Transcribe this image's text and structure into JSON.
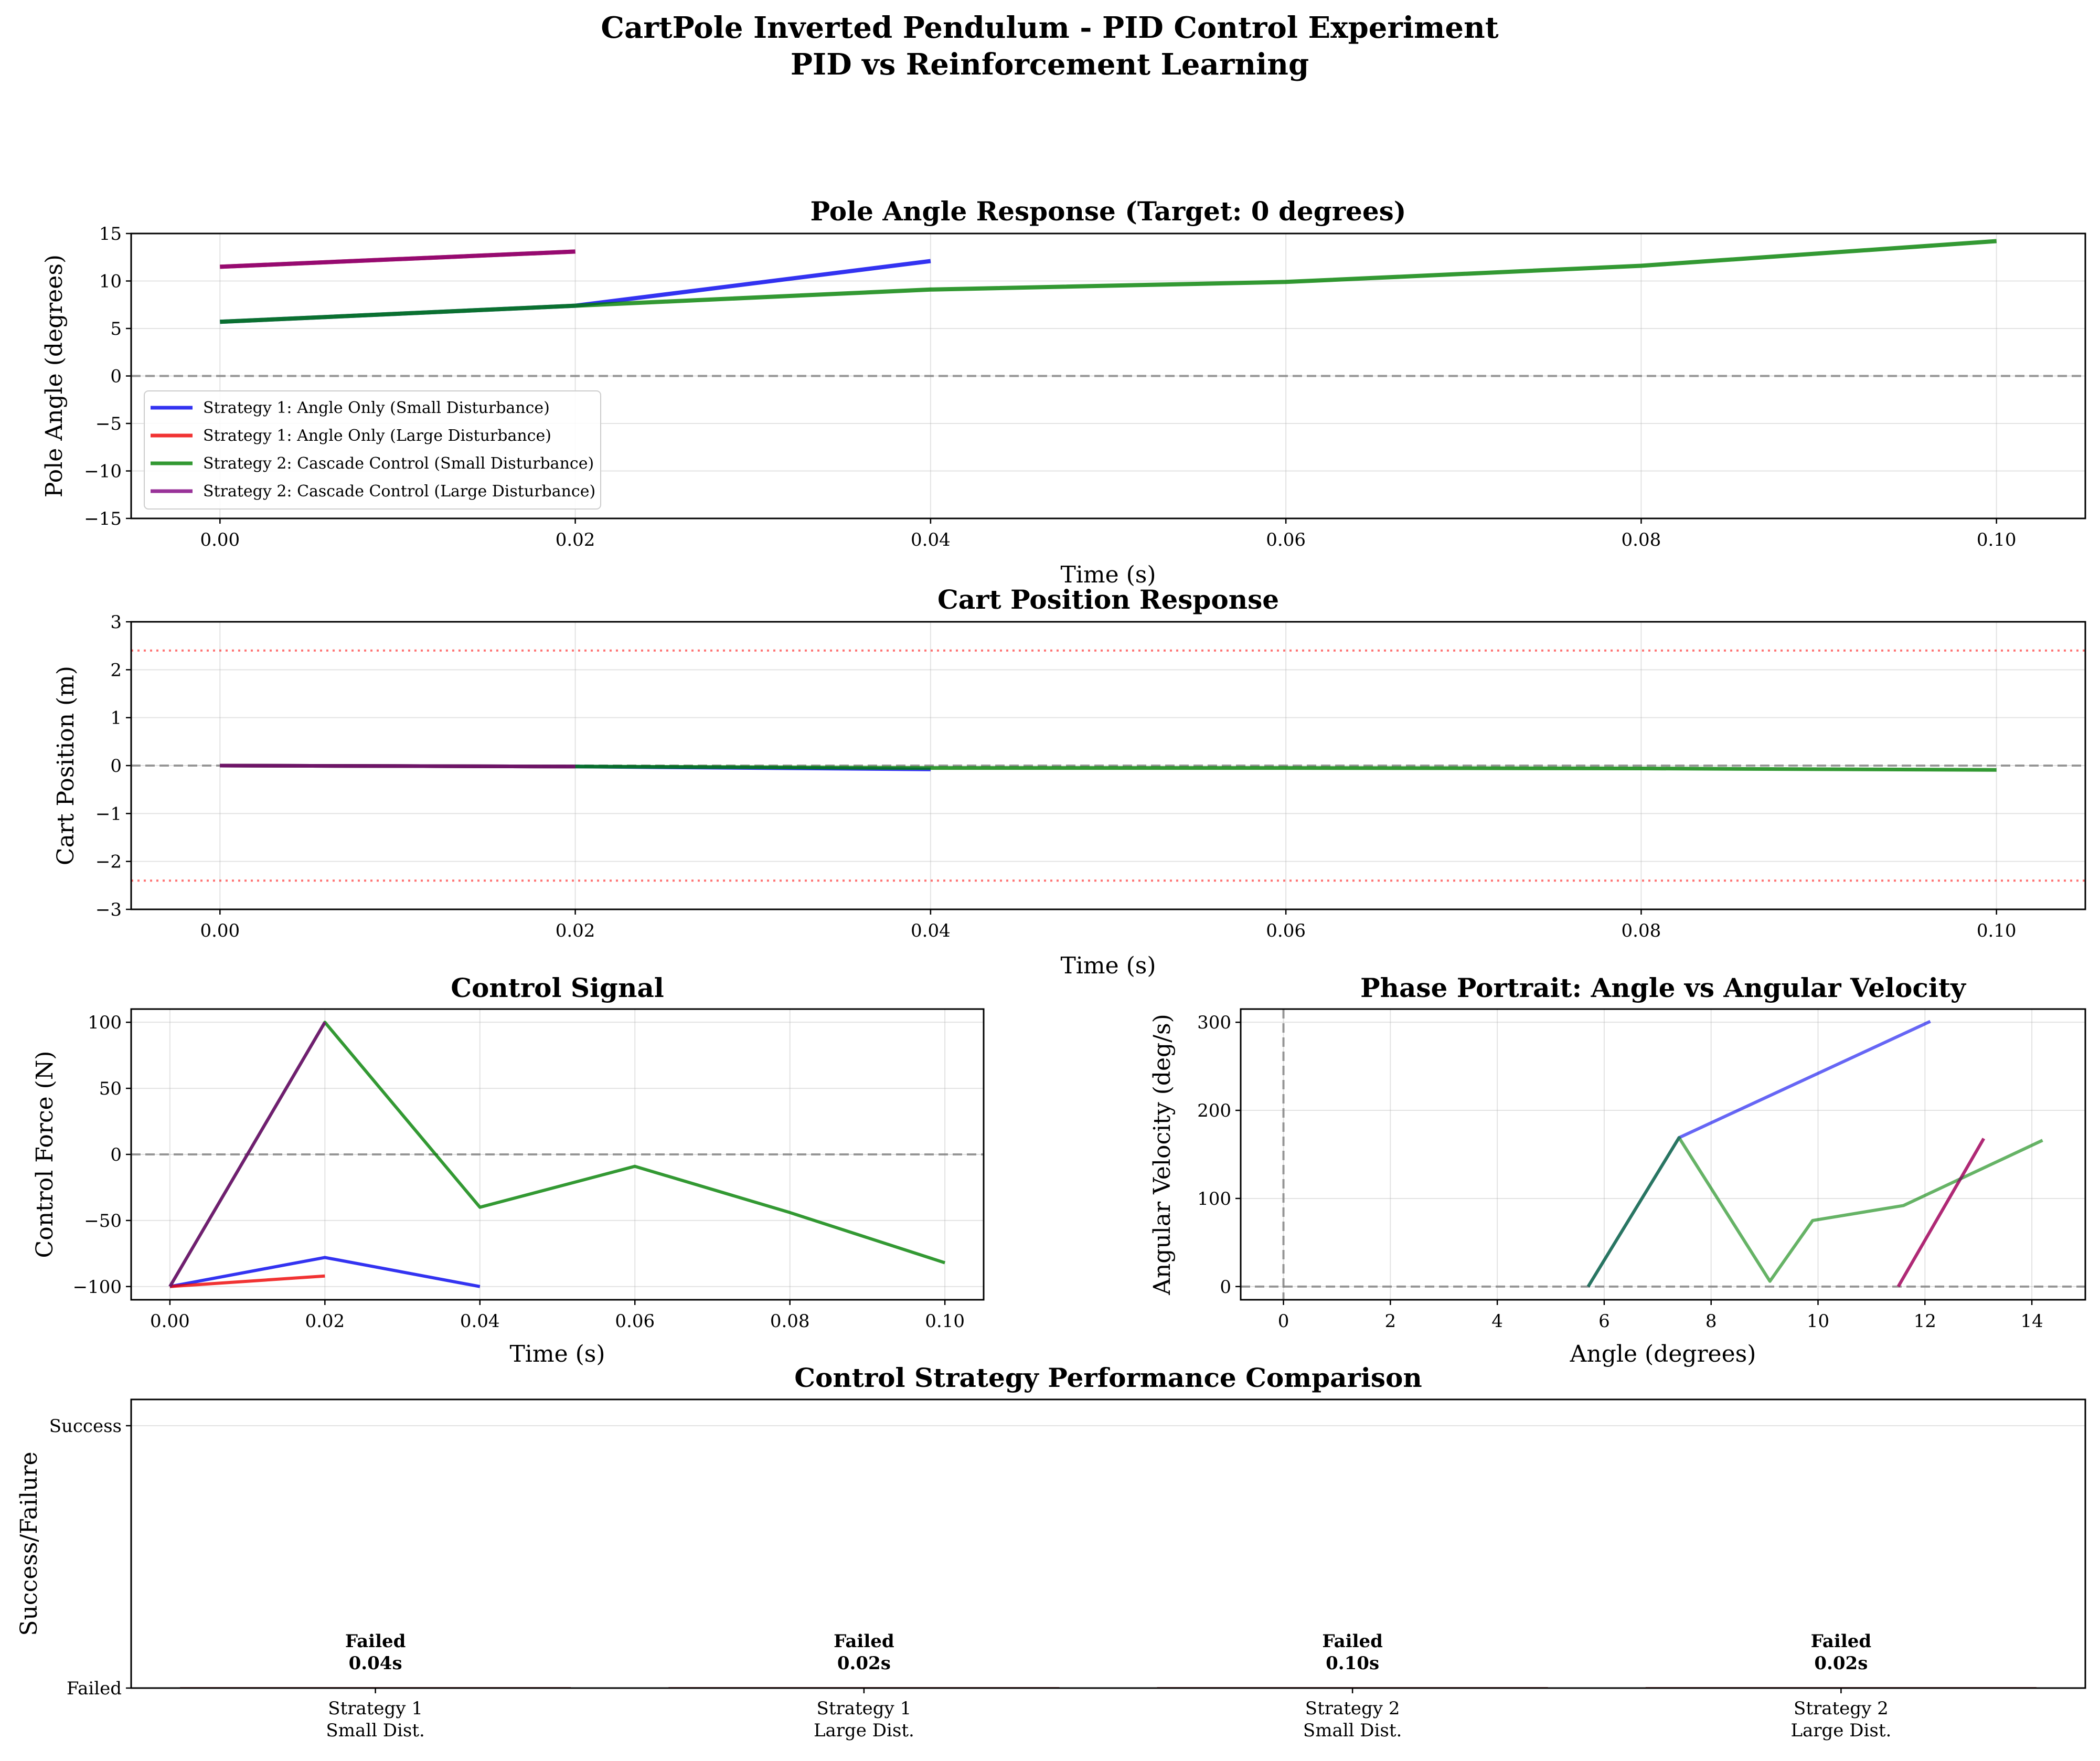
{
  "figure": {
    "title_line1": "CartPole Inverted Pendulum - PID Control Experiment",
    "title_line2": "PID vs Reinforcement Learning"
  },
  "series_styles": [
    {
      "name": "Strategy 1: Angle Only (Small Disturbance)",
      "color": "#0000ee"
    },
    {
      "name": "Strategy 1: Angle Only (Large Disturbance)",
      "color": "#ee0000"
    },
    {
      "name": "Strategy 2: Cascade Control (Small Disturbance)",
      "color": "#008000"
    },
    {
      "name": "Strategy 2: Cascade Control (Large Disturbance)",
      "color": "#800080"
    }
  ],
  "chart_data": [
    {
      "id": "angle",
      "type": "line",
      "title": "Pole Angle Response (Target: 0 degrees)",
      "xlabel": "Time (s)",
      "ylabel": "Pole Angle (degrees)",
      "xlim": [
        -0.005,
        0.105
      ],
      "ylim": [
        -15,
        15
      ],
      "xticks": [
        0,
        0.02,
        0.04,
        0.06,
        0.08,
        0.1
      ],
      "xtick_labels": [
        "0.00",
        "0.02",
        "0.04",
        "0.06",
        "0.08",
        "0.10"
      ],
      "yticks": [
        -15,
        -10,
        -5,
        0,
        5,
        10,
        15
      ],
      "ytick_labels": [
        "−15",
        "−10",
        "−5",
        "0",
        "5",
        "10",
        "15"
      ],
      "hlines": [
        {
          "y": 0,
          "style": "zero"
        }
      ],
      "legend": "lower-left",
      "series": [
        {
          "name": "Strategy 1: Angle Only (Small Disturbance)",
          "x": [
            0,
            0.02,
            0.04
          ],
          "y": [
            5.7,
            7.4,
            12.1
          ]
        },
        {
          "name": "Strategy 1: Angle Only (Large Disturbance)",
          "x": [
            0,
            0.02
          ],
          "y": [
            11.5,
            13.1
          ]
        },
        {
          "name": "Strategy 2: Cascade Control (Small Disturbance)",
          "x": [
            0,
            0.02,
            0.04,
            0.06,
            0.08,
            0.1
          ],
          "y": [
            5.7,
            7.4,
            9.1,
            9.9,
            11.6,
            14.2
          ]
        },
        {
          "name": "Strategy 2: Cascade Control (Large Disturbance)",
          "x": [
            0,
            0.02
          ],
          "y": [
            11.5,
            13.1
          ]
        }
      ]
    },
    {
      "id": "cart",
      "type": "line",
      "title": "Cart Position Response",
      "xlabel": "Time (s)",
      "ylabel": "Cart Position (m)",
      "xlim": [
        -0.005,
        0.105
      ],
      "ylim": [
        -3,
        3
      ],
      "xticks": [
        0,
        0.02,
        0.04,
        0.06,
        0.08,
        0.1
      ],
      "xtick_labels": [
        "0.00",
        "0.02",
        "0.04",
        "0.06",
        "0.08",
        "0.10"
      ],
      "yticks": [
        -3,
        -2,
        -1,
        0,
        1,
        2,
        3
      ],
      "ytick_labels": [
        "−3",
        "−2",
        "−1",
        "0",
        "1",
        "2",
        "3"
      ],
      "hlines": [
        {
          "y": 0,
          "style": "zero"
        },
        {
          "y": 2.4,
          "style": "bound"
        },
        {
          "y": -2.4,
          "style": "bound"
        }
      ],
      "series": [
        {
          "name": "Strategy 1: Angle Only (Small Disturbance)",
          "x": [
            0,
            0.02,
            0.04
          ],
          "y": [
            0,
            -0.02,
            -0.08
          ]
        },
        {
          "name": "Strategy 1: Angle Only (Large Disturbance)",
          "x": [
            0,
            0.02
          ],
          "y": [
            0,
            -0.02
          ]
        },
        {
          "name": "Strategy 2: Cascade Control (Small Disturbance)",
          "x": [
            0,
            0.02,
            0.04,
            0.06,
            0.08,
            0.1
          ],
          "y": [
            0,
            -0.02,
            -0.05,
            -0.05,
            -0.06,
            -0.09
          ]
        },
        {
          "name": "Strategy 2: Cascade Control (Large Disturbance)",
          "x": [
            0,
            0.02
          ],
          "y": [
            0,
            -0.02
          ]
        }
      ]
    },
    {
      "id": "control",
      "type": "line",
      "title": "Control Signal",
      "xlabel": "Time (s)",
      "ylabel": "Control Force (N)",
      "xlim": [
        -0.005,
        0.105
      ],
      "ylim": [
        -110,
        110
      ],
      "xticks": [
        0,
        0.02,
        0.04,
        0.06,
        0.08,
        0.1
      ],
      "xtick_labels": [
        "0.00",
        "0.02",
        "0.04",
        "0.06",
        "0.08",
        "0.10"
      ],
      "yticks": [
        -100,
        -50,
        0,
        50,
        100
      ],
      "ytick_labels": [
        "−100",
        "−50",
        "0",
        "50",
        "100"
      ],
      "hlines": [
        {
          "y": 0,
          "style": "zero"
        }
      ],
      "series": [
        {
          "name": "Strategy 1: Angle Only (Small Disturbance)",
          "x": [
            0,
            0.02,
            0.04
          ],
          "y": [
            -100,
            -78,
            -100
          ]
        },
        {
          "name": "Strategy 1: Angle Only (Large Disturbance)",
          "x": [
            0,
            0.02
          ],
          "y": [
            -100,
            -92
          ]
        },
        {
          "name": "Strategy 2: Cascade Control (Small Disturbance)",
          "x": [
            0,
            0.02,
            0.04,
            0.06,
            0.08,
            0.1
          ],
          "y": [
            -100,
            100,
            -40,
            -9,
            -44,
            -82
          ]
        },
        {
          "name": "Strategy 2: Cascade Control (Large Disturbance)",
          "x": [
            0,
            0.02
          ],
          "y": [
            -100,
            100
          ]
        }
      ]
    },
    {
      "id": "phase",
      "type": "line",
      "title": "Phase Portrait: Angle vs Angular Velocity",
      "xlabel": "Angle (degrees)",
      "ylabel": "Angular Velocity (deg/s)",
      "xlim": [
        -0.8,
        15
      ],
      "ylim": [
        -15,
        315
      ],
      "xticks": [
        0,
        2,
        4,
        6,
        8,
        10,
        12,
        14
      ],
      "xtick_labels": [
        "0",
        "2",
        "4",
        "6",
        "8",
        "10",
        "12",
        "14"
      ],
      "yticks": [
        0,
        100,
        200,
        300
      ],
      "ytick_labels": [
        "0",
        "100",
        "200",
        "300"
      ],
      "hlines": [
        {
          "y": 0,
          "style": "zero"
        }
      ],
      "vlines": [
        {
          "x": 0,
          "style": "zero"
        }
      ],
      "series": [
        {
          "name": "Strategy 1: Angle Only (Small Disturbance)",
          "x": [
            5.7,
            7.4,
            12.1
          ],
          "y": [
            0,
            169,
            301
          ]
        },
        {
          "name": "Strategy 1: Angle Only (Large Disturbance)",
          "x": [
            11.5,
            13.1
          ],
          "y": [
            0,
            168
          ]
        },
        {
          "name": "Strategy 2: Cascade Control (Small Disturbance)",
          "x": [
            5.7,
            7.4,
            9.1,
            9.9,
            11.6,
            14.2
          ],
          "y": [
            0,
            169,
            6,
            75,
            92,
            166
          ]
        },
        {
          "name": "Strategy 2: Cascade Control (Large Disturbance)",
          "x": [
            11.5,
            13.1
          ],
          "y": [
            0,
            168
          ]
        }
      ]
    },
    {
      "id": "performance",
      "type": "bar",
      "title": "Control Strategy Performance Comparison",
      "ylabel": "Success/Failure",
      "ylim": [
        0,
        1.1
      ],
      "yticks": [
        0,
        1
      ],
      "ytick_labels": [
        "Failed",
        "Success"
      ],
      "categories": [
        [
          "Strategy 1",
          "Small Dist."
        ],
        [
          "Strategy 1",
          "Large Dist."
        ],
        [
          "Strategy 2",
          "Small Dist."
        ],
        [
          "Strategy 2",
          "Large Dist."
        ]
      ],
      "values": [
        0,
        0,
        0,
        0
      ],
      "bar_labels": [
        [
          "Failed",
          "0.04s"
        ],
        [
          "Failed",
          "0.02s"
        ],
        [
          "Failed",
          "0.10s"
        ],
        [
          "Failed",
          "0.02s"
        ]
      ]
    }
  ]
}
